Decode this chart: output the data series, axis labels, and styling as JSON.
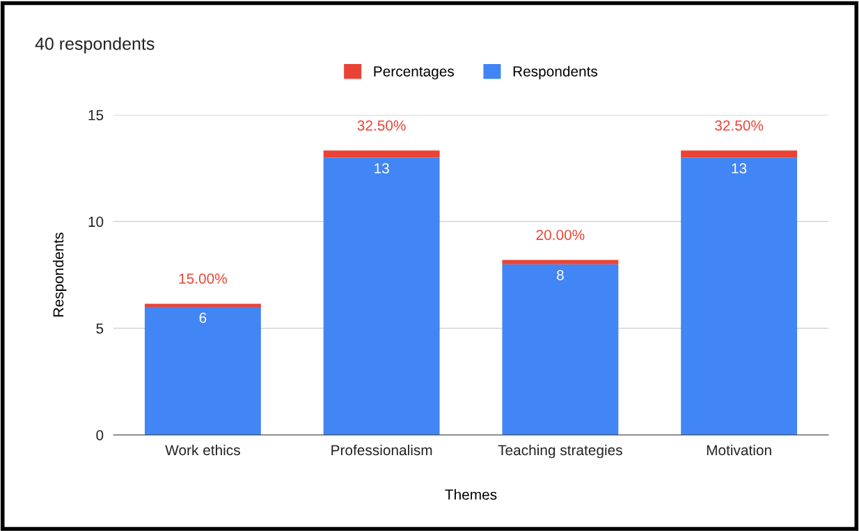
{
  "chart_data": {
    "type": "bar",
    "title": "40 respondents",
    "xlabel": "Themes",
    "ylabel": "Respondents",
    "categories": [
      "Work ethics",
      "Professionalism",
      "Teaching strategies",
      "Motivation"
    ],
    "stacked": true,
    "series": [
      {
        "name": "Respondents",
        "color": "#4285f4",
        "values": [
          6,
          13,
          8,
          13
        ],
        "value_labels": [
          "6",
          "13",
          "8",
          "13"
        ]
      },
      {
        "name": "Percentages",
        "color": "#ea4335",
        "values": [
          0.15,
          0.325,
          0.2,
          0.325
        ],
        "value_labels": [
          "15.00%",
          "32.50%",
          "20.00%",
          "32.50%"
        ]
      }
    ],
    "ylim": [
      0,
      15
    ],
    "yticks": [
      0,
      5,
      10,
      15
    ],
    "grid": "y",
    "legend": "top"
  }
}
